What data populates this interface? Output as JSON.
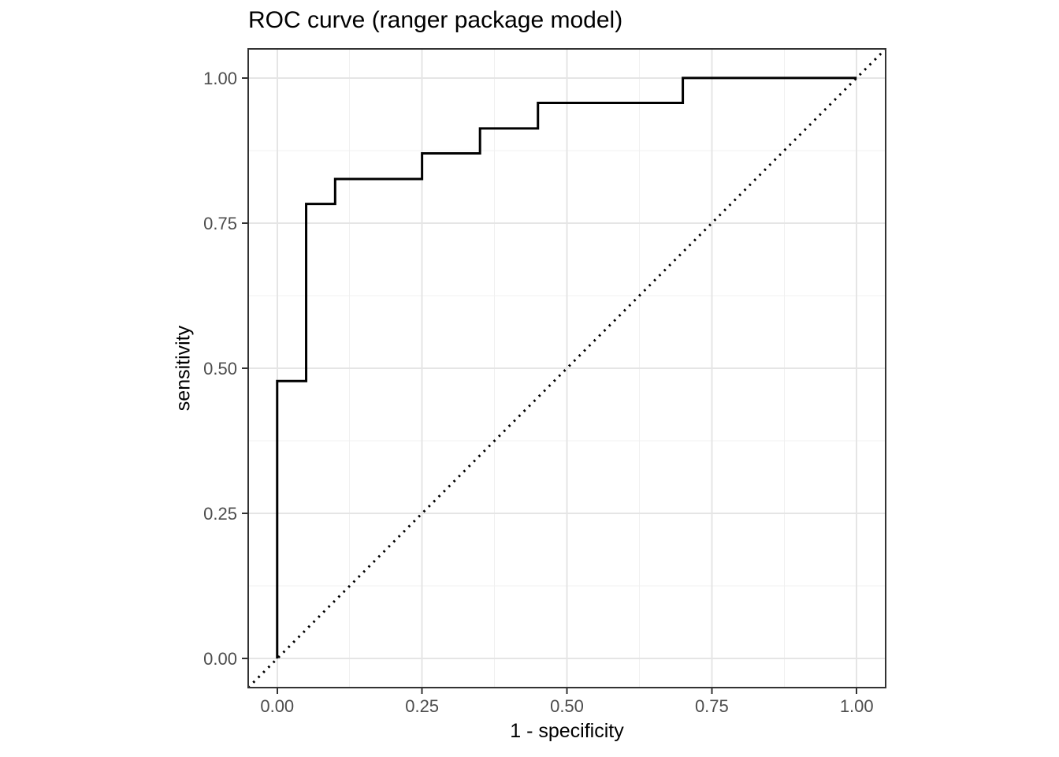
{
  "colors": {
    "background": "#FFFFFF",
    "curve": "#000000",
    "reference_line": "#000000",
    "panel_border": "#333333",
    "grid_major": "#E5E5E5",
    "grid_minor": "#F0F0F0",
    "tick_mark": "#333333",
    "tick_label_text": "#4D4D4D",
    "axis_title_text": "#000000",
    "title_text": "#000000"
  },
  "chart_data": {
    "type": "line",
    "subtype": "roc-step-curve",
    "title": "ROC curve (ranger package model)",
    "xlabel": "1 - specificity",
    "ylabel": "sensitivity",
    "xlim": [
      -0.05,
      1.05
    ],
    "ylim": [
      -0.05,
      1.05
    ],
    "x_ticks": {
      "values": [
        0,
        0.25,
        0.5,
        0.75,
        1.0
      ],
      "labels": [
        "0.00",
        "0.25",
        "0.50",
        "0.75",
        "1.00"
      ]
    },
    "y_ticks": {
      "values": [
        0,
        0.25,
        0.5,
        0.75,
        1.0
      ],
      "labels": [
        "0.00",
        "0.25",
        "0.50",
        "0.75",
        "1.00"
      ]
    },
    "minor_ticks": [
      0.125,
      0.375,
      0.625,
      0.875
    ],
    "grid": {
      "major": true,
      "minor": true
    },
    "legend": "none",
    "series": [
      {
        "name": "roc-curve",
        "type": "step",
        "style": "solid",
        "color": "#000000",
        "points": [
          [
            0.0,
            0.0
          ],
          [
            0.0,
            0.478
          ],
          [
            0.05,
            0.478
          ],
          [
            0.05,
            0.783
          ],
          [
            0.1,
            0.783
          ],
          [
            0.1,
            0.826
          ],
          [
            0.25,
            0.826
          ],
          [
            0.25,
            0.87
          ],
          [
            0.35,
            0.87
          ],
          [
            0.35,
            0.913
          ],
          [
            0.45,
            0.913
          ],
          [
            0.45,
            0.957
          ],
          [
            0.7,
            0.957
          ],
          [
            0.7,
            1.0
          ],
          [
            1.0,
            1.0
          ]
        ]
      },
      {
        "name": "chance-diagonal",
        "type": "line",
        "style": "dotted",
        "color": "#000000",
        "points": [
          [
            -0.05,
            -0.05
          ],
          [
            1.05,
            1.05
          ]
        ]
      }
    ]
  }
}
